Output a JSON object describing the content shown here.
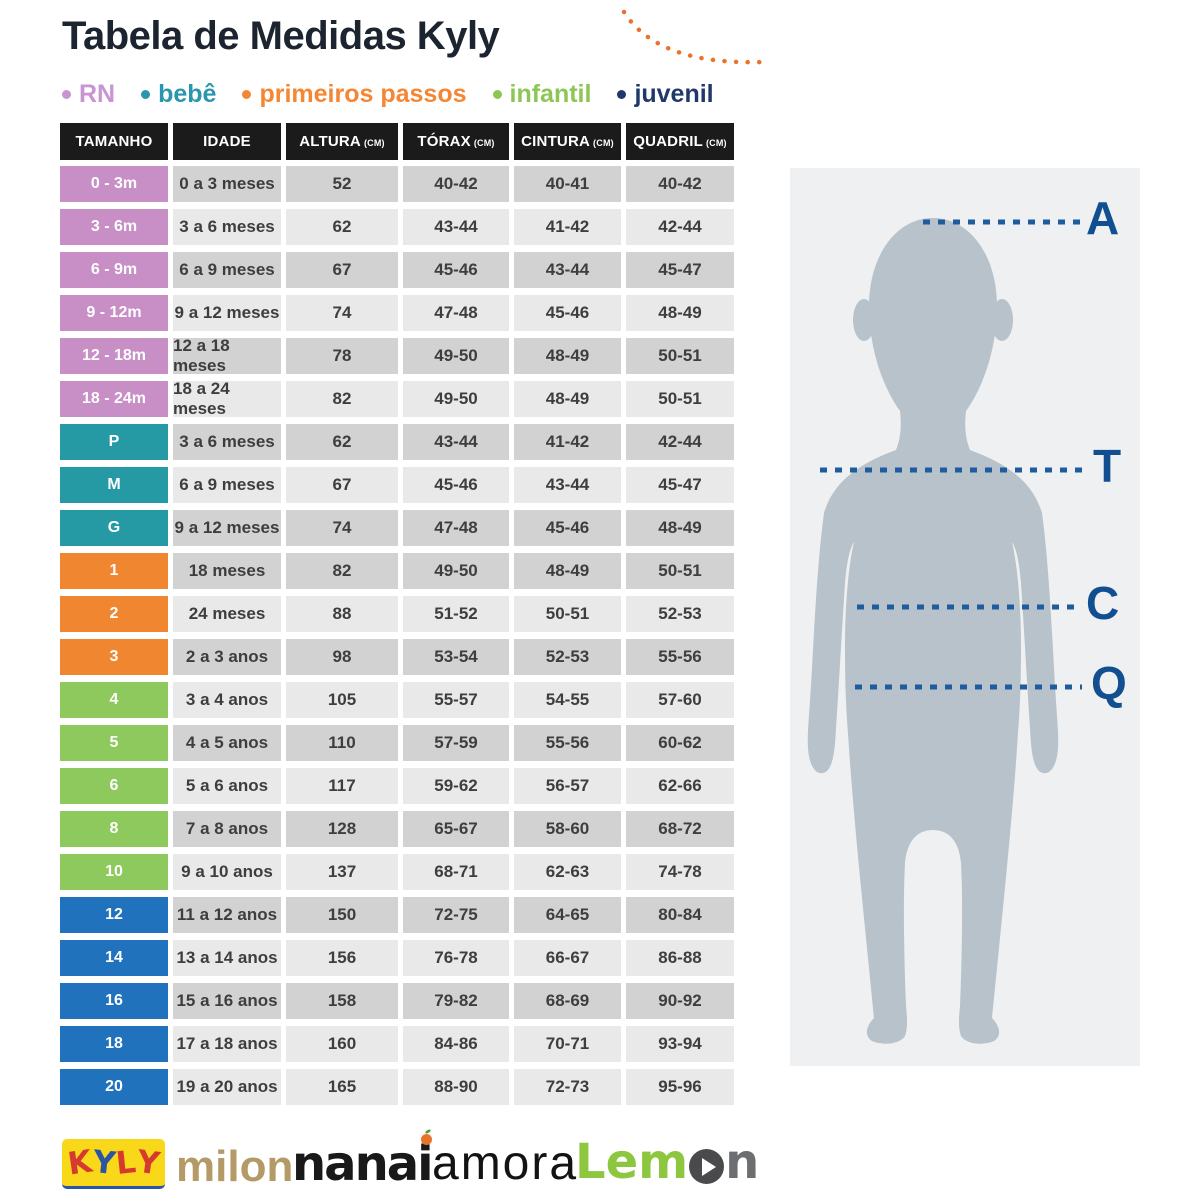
{
  "title": "Tabela de Medidas Kyly",
  "legend": [
    {
      "label": "RN",
      "color": "#c795d2"
    },
    {
      "label": "bebê",
      "color": "#2a96ad"
    },
    {
      "label": "primeiros passos",
      "color": "#f58634"
    },
    {
      "label": "infantil",
      "color": "#8dc653"
    },
    {
      "label": "juvenil",
      "color": "#21386b"
    }
  ],
  "category_colors": {
    "RN": "#c78fc6",
    "bebê": "#2599a4",
    "primeiros passos": "#f18631",
    "infantil": "#8ec95e",
    "juvenil": "#2172bd"
  },
  "shade_colors": {
    "dark": "#d2d2d2",
    "light": "#e9e9e9"
  },
  "table": {
    "headers": [
      {
        "label": "TAMANHO",
        "unit": ""
      },
      {
        "label": "IDADE",
        "unit": ""
      },
      {
        "label": "ALTURA",
        "unit": "(CM)"
      },
      {
        "label": "TÓRAX",
        "unit": "(CM)"
      },
      {
        "label": "CINTURA",
        "unit": "(CM)"
      },
      {
        "label": "QUADRIL",
        "unit": "(CM)"
      }
    ],
    "rows": [
      {
        "size": "0 - 3m",
        "category": "RN",
        "shade": "dark",
        "idade": "0 a 3 meses",
        "altura": "52",
        "torax": "40-42",
        "cintura": "40-41",
        "quadril": "40-42"
      },
      {
        "size": "3 - 6m",
        "category": "RN",
        "shade": "light",
        "idade": "3 a 6 meses",
        "altura": "62",
        "torax": "43-44",
        "cintura": "41-42",
        "quadril": "42-44"
      },
      {
        "size": "6 - 9m",
        "category": "RN",
        "shade": "dark",
        "idade": "6 a 9 meses",
        "altura": "67",
        "torax": "45-46",
        "cintura": "43-44",
        "quadril": "45-47"
      },
      {
        "size": "9 - 12m",
        "category": "RN",
        "shade": "light",
        "idade": "9 a 12 meses",
        "altura": "74",
        "torax": "47-48",
        "cintura": "45-46",
        "quadril": "48-49"
      },
      {
        "size": "12 - 18m",
        "category": "RN",
        "shade": "dark",
        "idade": "12 a 18 meses",
        "altura": "78",
        "torax": "49-50",
        "cintura": "48-49",
        "quadril": "50-51"
      },
      {
        "size": "18 - 24m",
        "category": "RN",
        "shade": "light",
        "idade": "18 a 24 meses",
        "altura": "82",
        "torax": "49-50",
        "cintura": "48-49",
        "quadril": "50-51"
      },
      {
        "size": "P",
        "category": "bebê",
        "shade": "dark",
        "idade": "3 a 6 meses",
        "altura": "62",
        "torax": "43-44",
        "cintura": "41-42",
        "quadril": "42-44"
      },
      {
        "size": "M",
        "category": "bebê",
        "shade": "light",
        "idade": "6 a 9 meses",
        "altura": "67",
        "torax": "45-46",
        "cintura": "43-44",
        "quadril": "45-47"
      },
      {
        "size": "G",
        "category": "bebê",
        "shade": "dark",
        "idade": "9 a 12 meses",
        "altura": "74",
        "torax": "47-48",
        "cintura": "45-46",
        "quadril": "48-49"
      },
      {
        "size": "1",
        "category": "primeiros passos",
        "shade": "dark",
        "idade": "18 meses",
        "altura": "82",
        "torax": "49-50",
        "cintura": "48-49",
        "quadril": "50-51"
      },
      {
        "size": "2",
        "category": "primeiros passos",
        "shade": "light",
        "idade": "24 meses",
        "altura": "88",
        "torax": "51-52",
        "cintura": "50-51",
        "quadril": "52-53"
      },
      {
        "size": "3",
        "category": "primeiros passos",
        "shade": "dark",
        "idade": "2 a 3 anos",
        "altura": "98",
        "torax": "53-54",
        "cintura": "52-53",
        "quadril": "55-56"
      },
      {
        "size": "4",
        "category": "infantil",
        "shade": "light",
        "idade": "3 a 4 anos",
        "altura": "105",
        "torax": "55-57",
        "cintura": "54-55",
        "quadril": "57-60"
      },
      {
        "size": "5",
        "category": "infantil",
        "shade": "dark",
        "idade": "4 a 5 anos",
        "altura": "110",
        "torax": "57-59",
        "cintura": "55-56",
        "quadril": "60-62"
      },
      {
        "size": "6",
        "category": "infantil",
        "shade": "light",
        "idade": "5 a 6 anos",
        "altura": "117",
        "torax": "59-62",
        "cintura": "56-57",
        "quadril": "62-66"
      },
      {
        "size": "8",
        "category": "infantil",
        "shade": "dark",
        "idade": "7 a 8 anos",
        "altura": "128",
        "torax": "65-67",
        "cintura": "58-60",
        "quadril": "68-72"
      },
      {
        "size": "10",
        "category": "infantil",
        "shade": "light",
        "idade": "9 a 10 anos",
        "altura": "137",
        "torax": "68-71",
        "cintura": "62-63",
        "quadril": "74-78"
      },
      {
        "size": "12",
        "category": "juvenil",
        "shade": "dark",
        "idade": "11 a 12 anos",
        "altura": "150",
        "torax": "72-75",
        "cintura": "64-65",
        "quadril": "80-84"
      },
      {
        "size": "14",
        "category": "juvenil",
        "shade": "light",
        "idade": "13 a 14 anos",
        "altura": "156",
        "torax": "76-78",
        "cintura": "66-67",
        "quadril": "86-88"
      },
      {
        "size": "16",
        "category": "juvenil",
        "shade": "dark",
        "idade": "15 a 16 anos",
        "altura": "158",
        "torax": "79-82",
        "cintura": "68-69",
        "quadril": "90-92"
      },
      {
        "size": "18",
        "category": "juvenil",
        "shade": "light",
        "idade": "17 a 18 anos",
        "altura": "160",
        "torax": "84-86",
        "cintura": "70-71",
        "quadril": "93-94"
      },
      {
        "size": "20",
        "category": "juvenil",
        "shade": "light",
        "idade": "19 a 20 anos",
        "altura": "165",
        "torax": "88-90",
        "cintura": "72-73",
        "quadril": "95-96"
      }
    ]
  },
  "diagram": {
    "letters": [
      "A",
      "T",
      "C",
      "Q"
    ],
    "panel_bg": "#eef0f1",
    "silhouette_color": "#b7c2ca",
    "dash_color": "#1f5c9d",
    "letter_color": "#114f90"
  },
  "brands": {
    "kyly": {
      "bg": "#f8d818",
      "letters": [
        {
          "ch": "K",
          "color": "#d6392f"
        },
        {
          "ch": "Y",
          "color": "#2a55a5"
        },
        {
          "ch": "L",
          "color": "#d6392f"
        },
        {
          "ch": "Y",
          "color": "#d6392f"
        }
      ]
    },
    "milon": {
      "label": "milon",
      "color": "#b49a67"
    },
    "nanai": {
      "label": "nanai",
      "color": "#191919",
      "apple_color": "#e8742c",
      "leaf_color": "#5a9e32"
    },
    "amora": {
      "label": "amora",
      "color": "#131313"
    },
    "lemon": {
      "prefix": "Lem",
      "suffix": "n",
      "prefix_color": "#8dc63f",
      "suffix_color": "#6d6e71",
      "play_color": "#4a4a4c"
    }
  },
  "decoration": {
    "arc_color": "#e8742c"
  }
}
